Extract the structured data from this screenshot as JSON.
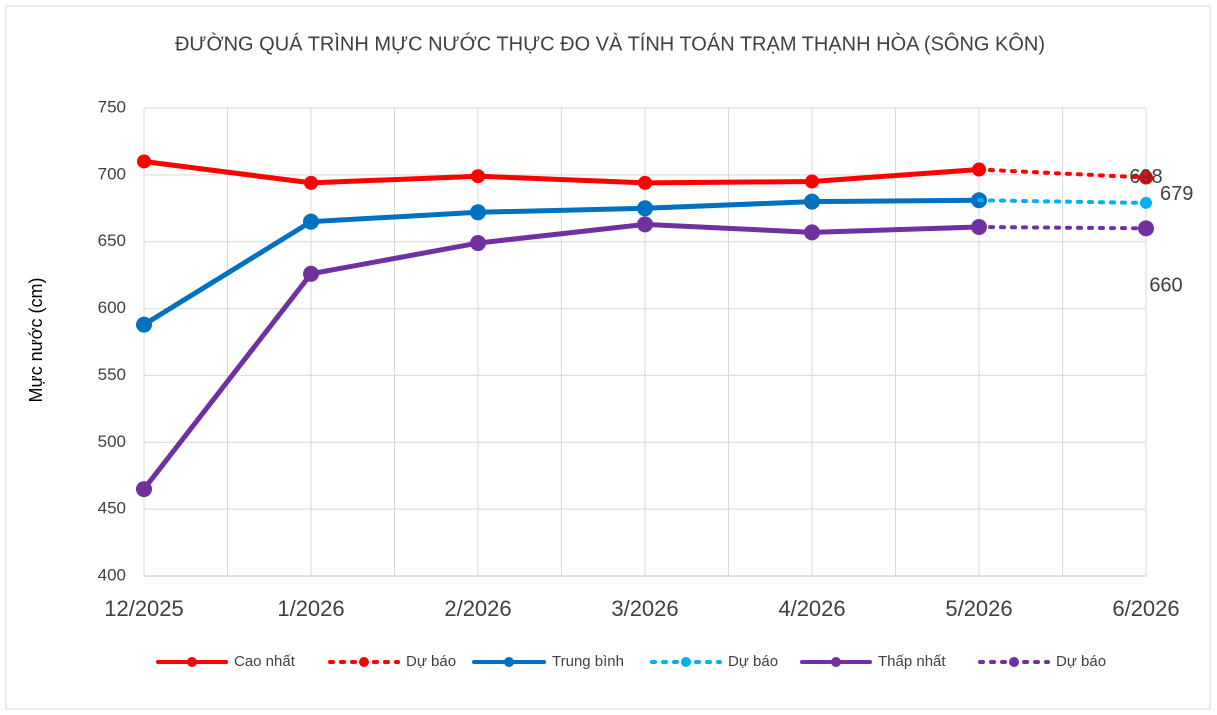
{
  "chart_data": {
    "type": "line",
    "title": "ĐƯỜNG QUÁ TRÌNH MỰC NƯỚC THỰC ĐO VÀ TÍNH TOÁN TRẠM THẠNH HÒA (SÔNG KÔN)",
    "y_label": "Mực nước (cm)",
    "categories": [
      "12/2025",
      "1/2026",
      "2/2026",
      "3/2026",
      "4/2026",
      "5/2026",
      "6/2026"
    ],
    "ylim": [
      400,
      750
    ],
    "yticks": [
      400,
      450,
      500,
      550,
      600,
      650,
      700,
      750
    ],
    "grid": true,
    "legend": "bottom",
    "series": [
      {
        "name": "Cao nhất",
        "color": "#ff0000",
        "line_style": "solid",
        "values": [
          710,
          694,
          699,
          694,
          695,
          704,
          null
        ]
      },
      {
        "name": "Dự báo",
        "color": "#ff0000",
        "line_style": "dotted",
        "values": [
          null,
          null,
          null,
          null,
          null,
          704,
          698
        ],
        "value_labels": [
          null,
          null,
          null,
          null,
          null,
          null,
          "698"
        ]
      },
      {
        "name": "Trung bình",
        "color": "#0070c0",
        "line_style": "solid",
        "values": [
          588,
          665,
          672,
          675,
          680,
          681,
          null
        ]
      },
      {
        "name": "Dự báo",
        "color": "#00b0f0",
        "line_style": "dotted",
        "values": [
          null,
          null,
          null,
          null,
          null,
          681,
          679
        ],
        "value_labels": [
          null,
          null,
          null,
          null,
          null,
          null,
          "679"
        ]
      },
      {
        "name": "Thấp nhất",
        "color": "#7030a0",
        "line_style": "solid",
        "values": [
          465,
          626,
          649,
          663,
          657,
          661,
          null
        ]
      },
      {
        "name": "Dự báo",
        "color": "#7030a0",
        "line_style": "dotted",
        "values": [
          null,
          null,
          null,
          null,
          null,
          661,
          660
        ],
        "value_labels": [
          null,
          null,
          null,
          null,
          null,
          null,
          "660"
        ]
      }
    ]
  }
}
